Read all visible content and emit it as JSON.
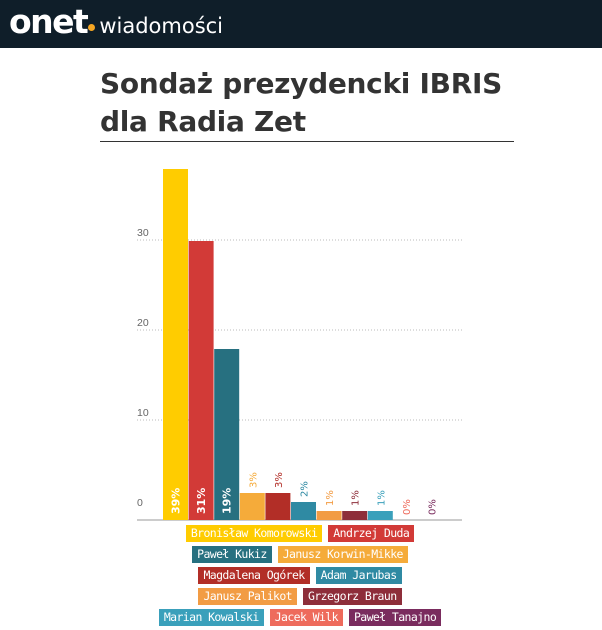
{
  "header": {
    "logo": "onet",
    "section": "wiadomości",
    "dot_color": "#f5a623",
    "background": "#0f1e29"
  },
  "page": {
    "title": "Sondaż prezydencki IBRIS dla Radia Zet"
  },
  "chart_data": {
    "type": "bar",
    "title": "Sondaż prezydencki IBRIS dla Radia Zet",
    "xlabel": "",
    "ylabel": "",
    "ylim": [
      0,
      39
    ],
    "yticks": [
      "0",
      "10",
      "20",
      "30"
    ],
    "grid": true,
    "legend_position": "bottom",
    "categories": [
      "Bronisław Komorowski",
      "Andrzej Duda",
      "Paweł Kukiz",
      "Janusz Korwin-Mikke",
      "Magdalena Ogórek",
      "Adam Jarubas",
      "Janusz Palikot",
      "Grzegorz Braun",
      "Marian Kowalski",
      "Jacek Wilk",
      "Paweł Tanajno"
    ],
    "values": [
      39,
      31,
      19,
      3,
      3,
      2,
      1,
      1,
      1,
      0,
      0
    ],
    "data_labels": [
      "39%",
      "31%",
      "19%",
      "3%",
      "3%",
      "2%",
      "1%",
      "1%",
      "1%",
      "0%",
      "0%"
    ],
    "colors": [
      "#ffcc00",
      "#d23a37",
      "#277080",
      "#f5ab3a",
      "#b22e27",
      "#2f8aa3",
      "#f29c44",
      "#8e2e3a",
      "#3aa0bb",
      "#ee6b5c",
      "#7a2c5e"
    ]
  }
}
